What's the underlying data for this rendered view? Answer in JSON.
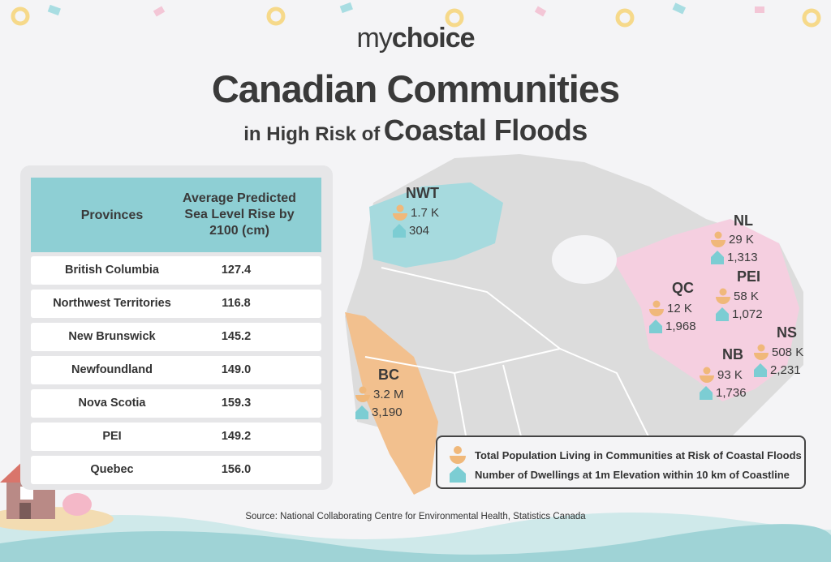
{
  "header": {
    "logo_prefix": "my",
    "logo_suffix": "choice",
    "title": "Canadian Communities",
    "subtitle_small": "in High Risk of",
    "subtitle_large": "Coastal Floods"
  },
  "colors": {
    "teal": "#8ecfd4",
    "orange": "#f2c08e",
    "pink": "#f5cfe0",
    "map_gray": "#dcdcdc",
    "person_icon": "#f0b87a",
    "house_icon": "#7ccdd3"
  },
  "chart_data": {
    "type": "table",
    "columns": [
      "Provinces",
      "Average Predicted Sea Level Rise by 2100 (cm)"
    ],
    "rows": [
      {
        "province": "British Columbia",
        "value": "127.4"
      },
      {
        "province": "Northwest Territories",
        "value": "116.8"
      },
      {
        "province": "New Brunswick",
        "value": "145.2"
      },
      {
        "province": "Newfoundland",
        "value": "149.0"
      },
      {
        "province": "Nova Scotia",
        "value": "159.3"
      },
      {
        "province": "PEI",
        "value": "149.2"
      },
      {
        "province": "Quebec",
        "value": "156.0"
      }
    ],
    "map_regions": [
      {
        "code": "NWT",
        "population": "1.7 K",
        "dwellings": "304",
        "color": "teal"
      },
      {
        "code": "BC",
        "population": "3.2 M",
        "dwellings": "3,190",
        "color": "orange"
      },
      {
        "code": "NL",
        "population": "29 K",
        "dwellings": "1,313",
        "color": "pink"
      },
      {
        "code": "QC",
        "population": "12 K",
        "dwellings": "1,968",
        "color": "pink"
      },
      {
        "code": "PEI",
        "population": "58 K",
        "dwellings": "1,072",
        "color": "pink"
      },
      {
        "code": "NS",
        "population": "508 K",
        "dwellings": "2,231",
        "color": "pink"
      },
      {
        "code": "NB",
        "population": "93 K",
        "dwellings": "1,736",
        "color": "pink"
      }
    ],
    "legend": [
      {
        "icon": "person-icon",
        "label": "Total Population Living in  Communities at Risk of Coastal Floods"
      },
      {
        "icon": "house-icon",
        "label": "Number of Dwellings at 1m Elevation within 10 km of Coastline"
      }
    ]
  },
  "source": "Source: National Collaborating Centre for Environmental Health, Statistics Canada"
}
